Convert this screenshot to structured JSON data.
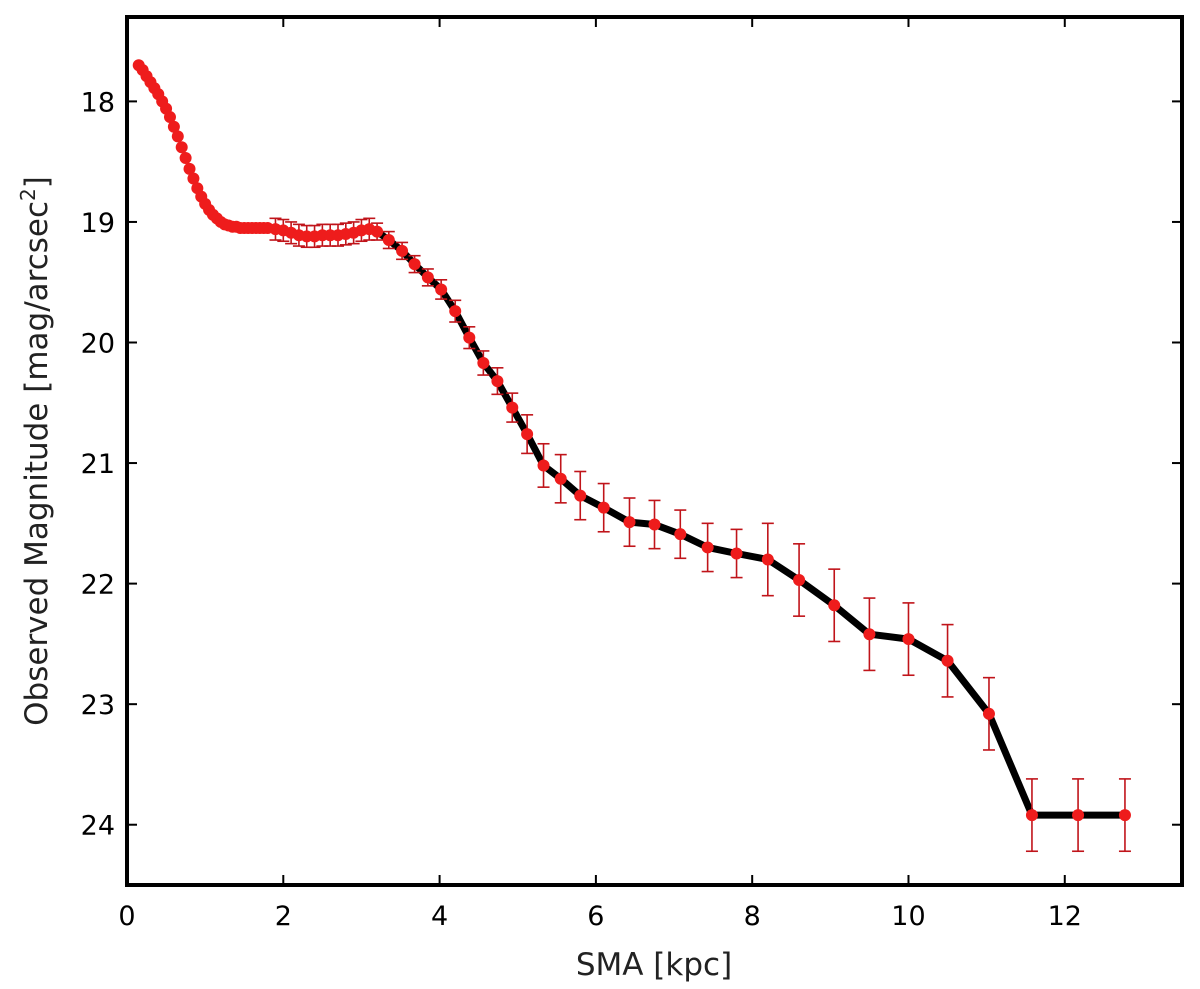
{
  "chart_data": {
    "type": "scatter",
    "title": "",
    "xlabel": "SMA [kpc]",
    "ylabel_main": "Observed Magnitude [mag/arcsec",
    "ylabel_sup": "2",
    "ylabel_close": "]",
    "xlim": [
      0,
      13.5
    ],
    "ylim": [
      24.5,
      17.3
    ],
    "y_inverted": true,
    "grid": false,
    "xticks": [
      0,
      2,
      4,
      6,
      8,
      10,
      12
    ],
    "yticks": [
      18,
      19,
      20,
      21,
      22,
      23,
      24
    ],
    "colors": {
      "points": "#ee1c1c",
      "errorbars": "#c0141a",
      "fit": "#000000",
      "frame": "#000000"
    },
    "dense_points": {
      "x": [
        0.15,
        0.2,
        0.25,
        0.3,
        0.35,
        0.4,
        0.45,
        0.5,
        0.55,
        0.6,
        0.65,
        0.7,
        0.75,
        0.8,
        0.85,
        0.9,
        0.95,
        1.0,
        1.05,
        1.1,
        1.15,
        1.2,
        1.25,
        1.3,
        1.35,
        1.4,
        1.45,
        1.5,
        1.55,
        1.6,
        1.65,
        1.7,
        1.75,
        1.8
      ],
      "y": [
        17.7,
        17.74,
        17.79,
        17.84,
        17.89,
        17.94,
        18.0,
        18.06,
        18.13,
        18.21,
        18.29,
        18.38,
        18.47,
        18.56,
        18.64,
        18.72,
        18.79,
        18.85,
        18.9,
        18.94,
        18.97,
        19.0,
        19.02,
        19.03,
        19.04,
        19.04,
        19.05,
        19.05,
        19.05,
        19.05,
        19.05,
        19.05,
        19.05,
        19.05
      ]
    },
    "error_points": {
      "x": [
        1.9,
        2.0,
        2.1,
        2.2,
        2.3,
        2.4,
        2.5,
        2.6,
        2.7,
        2.8,
        2.9,
        3.0,
        3.1,
        3.2,
        3.35,
        3.52,
        3.68,
        3.85,
        4.02,
        4.2,
        4.38,
        4.56,
        4.74,
        4.93,
        5.12,
        5.33,
        5.55,
        5.8,
        6.1,
        6.43,
        6.75,
        7.08,
        7.43,
        7.8,
        8.2,
        8.6,
        9.05,
        9.5,
        10.0,
        10.5,
        11.03,
        11.58,
        12.17,
        12.77
      ],
      "y": [
        19.06,
        19.07,
        19.09,
        19.11,
        19.12,
        19.12,
        19.11,
        19.11,
        19.11,
        19.1,
        19.09,
        19.07,
        19.06,
        19.08,
        19.15,
        19.24,
        19.35,
        19.46,
        19.56,
        19.74,
        19.96,
        20.17,
        20.32,
        20.54,
        20.76,
        21.02,
        21.13,
        21.27,
        21.37,
        21.49,
        21.51,
        21.59,
        21.7,
        21.75,
        21.8,
        21.97,
        22.18,
        22.42,
        22.46,
        22.64,
        23.08,
        23.92,
        23.92,
        23.92
      ],
      "err": [
        0.09,
        0.09,
        0.09,
        0.09,
        0.09,
        0.09,
        0.09,
        0.09,
        0.09,
        0.09,
        0.09,
        0.09,
        0.09,
        0.07,
        0.07,
        0.07,
        0.07,
        0.07,
        0.08,
        0.09,
        0.09,
        0.1,
        0.11,
        0.12,
        0.16,
        0.18,
        0.2,
        0.2,
        0.2,
        0.2,
        0.2,
        0.2,
        0.2,
        0.2,
        0.3,
        0.3,
        0.3,
        0.3,
        0.3,
        0.3,
        0.3,
        0.3,
        0.3,
        0.3
      ]
    },
    "fit_line": {
      "x": [
        3.2,
        3.35,
        3.52,
        3.68,
        3.85,
        4.02,
        4.2,
        4.38,
        4.56,
        4.74,
        4.93,
        5.12,
        5.33,
        5.55,
        5.8,
        6.1,
        6.43,
        6.75,
        7.08,
        7.43,
        7.8,
        8.2,
        8.6,
        9.05,
        9.5,
        10.0,
        10.5,
        11.03,
        11.58,
        12.17,
        12.77
      ],
      "y": [
        19.08,
        19.15,
        19.24,
        19.35,
        19.46,
        19.56,
        19.74,
        19.96,
        20.17,
        20.32,
        20.54,
        20.76,
        21.02,
        21.13,
        21.27,
        21.37,
        21.49,
        21.51,
        21.59,
        21.7,
        21.75,
        21.8,
        21.97,
        22.18,
        22.42,
        22.46,
        22.64,
        23.08,
        23.92,
        23.92,
        23.92
      ]
    }
  }
}
